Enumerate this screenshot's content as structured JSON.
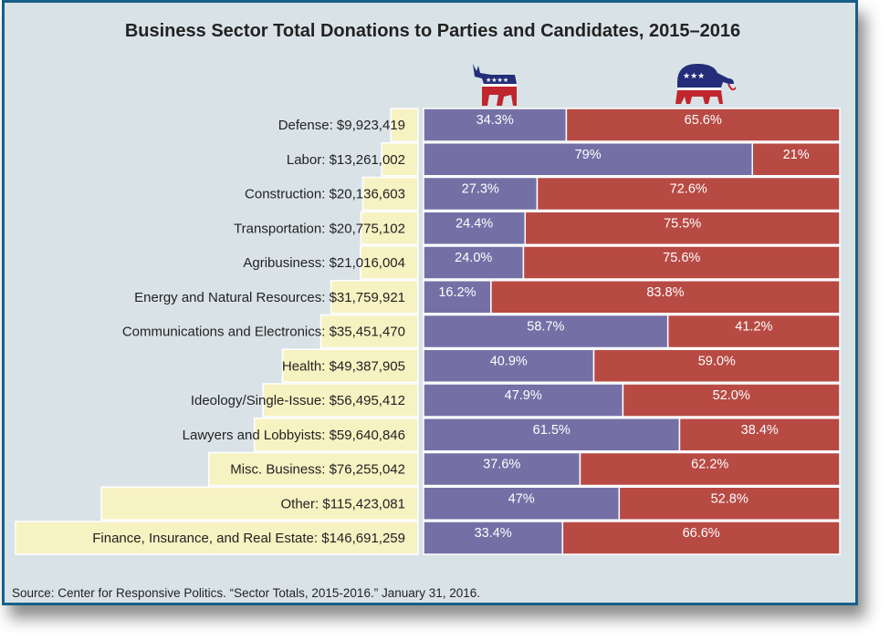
{
  "chart_data": {
    "type": "bar",
    "title": "Business Sector Total Donations to Parties and Candidates, 2015–2016",
    "source": "Source: Center for Responsive Politics. “Sector Totals, 2015-2016.” January 31, 2016.",
    "stacked": true,
    "series_icons": [
      "democratic-donkey-icon",
      "republican-elephant-icon"
    ],
    "colors": {
      "democratic": "#7470a6",
      "republican": "#b84a44",
      "total": "#f7f2c2"
    },
    "categories": [
      "Defense",
      "Labor",
      "Construction",
      "Transportation",
      "Agribusiness",
      "Energy and Natural Resources",
      "Communications and Electronics",
      "Health",
      "Ideology/Single-Issue",
      "Lawyers and Lobbyists",
      "Misc. Business",
      "Other",
      "Finance, Insurance, and Real Estate"
    ],
    "labels": [
      "Defense: $9,923,419",
      "Labor: $13,261,002",
      "Construction: $20,136,603",
      "Transportation: $20,775,102",
      "Agribusiness: $21,016,004",
      "Energy and Natural Resources: $31,759,921",
      "Communications and Electronics: $35,451,470",
      "Health: $49,387,905",
      "Ideology/Single-Issue: $56,495,412",
      "Lawyers and Lobbyists: $59,640,846",
      "Misc. Business: $76,255,042",
      "Other: $115,423,081",
      "Finance, Insurance, and Real Estate: $146,691,259"
    ],
    "totals": [
      9923419,
      13261002,
      20136603,
      20775102,
      21016004,
      31759921,
      35451470,
      49387905,
      56495412,
      59640846,
      76255042,
      115423081,
      146691259
    ],
    "democratic_labels": [
      "34.3%",
      "79%",
      "27.3%",
      "24.4%",
      "24.0%",
      "16.2%",
      "58.7%",
      "40.9%",
      "47.9%",
      "61.5%",
      "37.6%",
      "47%",
      "33.4%"
    ],
    "democratic": [
      34.3,
      79,
      27.3,
      24.4,
      24.0,
      16.2,
      58.7,
      40.9,
      47.9,
      61.5,
      37.6,
      47,
      33.4
    ],
    "republican_labels": [
      "65.6%",
      "21%",
      "72.6%",
      "75.5%",
      "75.6%",
      "83.8%",
      "41.2%",
      "59.0%",
      "52.0%",
      "38.4%",
      "62.2%",
      "52.8%",
      "66.6%"
    ],
    "republican": [
      65.6,
      21,
      72.6,
      75.5,
      75.6,
      83.8,
      41.2,
      59.0,
      52.0,
      38.4,
      62.2,
      52.8,
      66.6
    ]
  }
}
